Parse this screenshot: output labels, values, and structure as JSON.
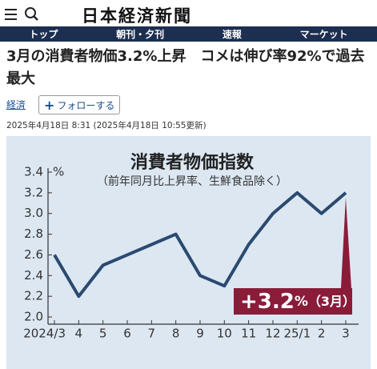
{
  "header": {
    "logo": "日本経済新聞"
  },
  "nav": [
    "トップ",
    "朝刊・夕刊",
    "速報",
    "マーケット"
  ],
  "article": {
    "headline": "3月の消費者物価3.2%上昇　コメは伸び率92%で過去最大",
    "category": "経済",
    "follow": "フォローする",
    "timestamp": "2025年4月18日 8:31 (2025年4月18日 10:55更新)"
  },
  "chart_data": {
    "type": "line",
    "title": "消費者物価指数",
    "subtitle": "（前年同月比上昇率、生鮮食品除く）",
    "y_unit": "%",
    "categories": [
      "2024/3",
      "4",
      "5",
      "6",
      "7",
      "8",
      "9",
      "10",
      "11",
      "12",
      "25/1",
      "2",
      "3"
    ],
    "values": [
      2.6,
      2.2,
      2.5,
      2.6,
      2.7,
      2.8,
      2.4,
      2.3,
      2.7,
      3.0,
      3.2,
      3.0,
      3.2
    ],
    "color": "#2b4a70",
    "ylim": [
      2.0,
      3.4
    ],
    "yticks": [
      {
        "value": 2,
        "label": "2.0"
      },
      2.2,
      2.4,
      2.6,
      2.8,
      {
        "value": 3,
        "label": "3.0"
      },
      3.2,
      3.4
    ],
    "annotation": {
      "change": "+3.2",
      "unit": "%",
      "period": "（3月）",
      "color": "#8a1c3a"
    }
  }
}
